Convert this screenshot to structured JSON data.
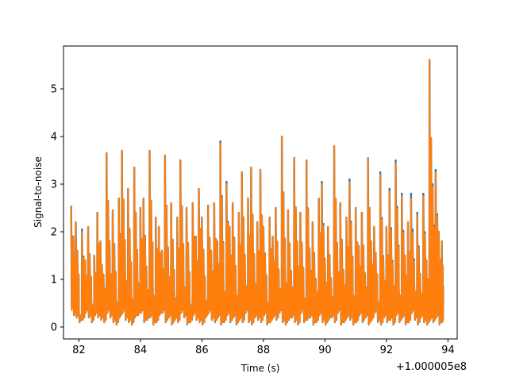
{
  "chart_data": {
    "type": "line",
    "xlabel": "Time (s)",
    "ylabel": "Signal-to-noise",
    "x_offset_label": "+1.000005e8",
    "xlim": [
      81.5,
      94.3
    ],
    "ylim": [
      -0.25,
      5.9
    ],
    "x_ticks": [
      82,
      84,
      86,
      88,
      90,
      92,
      94
    ],
    "x_tick_labels": [
      "82",
      "84",
      "86",
      "88",
      "90",
      "92",
      "94"
    ],
    "y_ticks": [
      0,
      1,
      2,
      3,
      4,
      5
    ],
    "y_tick_labels": [
      "0",
      "1",
      "2",
      "3",
      "4",
      "5"
    ],
    "grid": false,
    "series": [
      {
        "color": "#1f77b4",
        "x": [
          81.75,
          81.82,
          81.9,
          82.0,
          82.1,
          82.2,
          82.3,
          82.4,
          82.5,
          82.6,
          82.7,
          82.8,
          82.9,
          83.0,
          83.1,
          83.2,
          83.3,
          83.4,
          83.5,
          83.6,
          83.7,
          83.8,
          83.9,
          84.0,
          84.1,
          84.2,
          84.3,
          84.4,
          84.5,
          84.6,
          84.7,
          84.8,
          84.9,
          85.0,
          85.1,
          85.2,
          85.3,
          85.4,
          85.5,
          85.6,
          85.7,
          85.8,
          85.9,
          86.0,
          86.1,
          86.2,
          86.3,
          86.4,
          86.5,
          86.6,
          86.7,
          86.8,
          86.9,
          87.0,
          87.1,
          87.2,
          87.3,
          87.4,
          87.5,
          87.6,
          87.7,
          87.8,
          87.9,
          88.0,
          88.1,
          88.2,
          88.3,
          88.4,
          88.5,
          88.6,
          88.7,
          88.8,
          88.9,
          89.0,
          89.1,
          89.2,
          89.3,
          89.4,
          89.5,
          89.6,
          89.7,
          89.8,
          89.9,
          90.0,
          90.1,
          90.2,
          90.3,
          90.4,
          90.5,
          90.6,
          90.7,
          90.8,
          90.9,
          91.0,
          91.1,
          91.2,
          91.3,
          91.4,
          91.5,
          91.6,
          91.7,
          91.8,
          91.9,
          92.0,
          92.1,
          92.2,
          92.3,
          92.4,
          92.5,
          92.6,
          92.7,
          92.8,
          92.9,
          93.0,
          93.1,
          93.2,
          93.3,
          93.4,
          93.5,
          93.6,
          93.7,
          93.8
        ],
        "y": [
          2.55,
          1.9,
          2.2,
          0.3,
          2.05,
          1.4,
          2.1,
          0.6,
          1.5,
          2.4,
          1.8,
          1.1,
          3.65,
          1.5,
          2.45,
          0.7,
          2.7,
          3.7,
          1.3,
          2.9,
          0.8,
          3.35,
          1.2,
          2.5,
          2.7,
          1.05,
          3.7,
          0.9,
          2.3,
          2.1,
          1.6,
          3.6,
          1.4,
          2.6,
          0.8,
          2.3,
          3.5,
          1.1,
          2.5,
          0.6,
          2.6,
          1.9,
          2.9,
          2.3,
          0.7,
          2.55,
          1.6,
          2.6,
          1.8,
          3.9,
          1.0,
          3.05,
          2.1,
          2.6,
          0.9,
          2.4,
          3.25,
          1.1,
          2.7,
          3.35,
          1.2,
          2.2,
          3.3,
          2.1,
          0.7,
          2.3,
          1.9,
          2.5,
          1.0,
          4.0,
          1.3,
          2.45,
          1.1,
          3.55,
          1.8,
          2.4,
          0.8,
          3.5,
          1.6,
          2.2,
          1.0,
          2.7,
          3.05,
          1.3,
          2.1,
          0.8,
          3.8,
          1.5,
          2.6,
          1.2,
          2.3,
          3.1,
          0.9,
          2.5,
          1.7,
          2.4,
          1.1,
          3.55,
          1.8,
          2.1,
          0.7,
          3.25,
          1.3,
          2.1,
          2.9,
          1.2,
          3.5,
          0.9,
          2.8,
          1.5,
          2.2,
          2.8,
          1.0,
          2.4,
          0.9,
          2.8,
          1.4,
          5.6,
          3.0,
          3.3,
          2.0,
          1.8
        ],
        "y_low": [
          0.4,
          0.25,
          0.2,
          0.1,
          0.15,
          0.3,
          0.2,
          0.1,
          0.25,
          0.2,
          0.15,
          0.1,
          0.3,
          0.2,
          0.1,
          0.05,
          0.2,
          0.3,
          0.15,
          0.1,
          0.05,
          0.2,
          0.25,
          0.3,
          0.1,
          0.15,
          0.2,
          0.05,
          0.1,
          0.25,
          0.3,
          0.1,
          0.2,
          0.05,
          0.15,
          0.1,
          0.3,
          0.2,
          0.05,
          0.1,
          0.25,
          0.15,
          0.1,
          0.05,
          0.2,
          0.3,
          0.15,
          0.1,
          0.2,
          0.05,
          0.1,
          0.25,
          0.1,
          0.2,
          0.05,
          0.15,
          0.1,
          0.3,
          0.1,
          0.05,
          0.2,
          0.15,
          0.1,
          0.25,
          0.05,
          0.1,
          0.2,
          0.15,
          0.3,
          0.1,
          0.05,
          0.15,
          0.2,
          0.1,
          0.05,
          0.3,
          0.1,
          0.15,
          0.2,
          0.05,
          0.1,
          0.25,
          0.1,
          0.05,
          0.15,
          0.2,
          0.1,
          0.3,
          0.05,
          0.1,
          0.2,
          0.15,
          0.05,
          0.1,
          0.25,
          0.1,
          0.2,
          0.05,
          0.15,
          0.3,
          0.1,
          0.05,
          0.2,
          0.1,
          0.15,
          0.05,
          0.25,
          0.1,
          0.2,
          0.05,
          0.1,
          0.3,
          0.15,
          0.05,
          0.2,
          0.1,
          0.05,
          0.15,
          0.1,
          0.2,
          0.05,
          0.1
        ]
      },
      {
        "color": "#ff7f0e",
        "x": [
          81.75,
          81.82,
          81.9,
          82.0,
          82.1,
          82.2,
          82.3,
          82.4,
          82.5,
          82.6,
          82.7,
          82.8,
          82.9,
          83.0,
          83.1,
          83.2,
          83.3,
          83.4,
          83.5,
          83.6,
          83.7,
          83.8,
          83.9,
          84.0,
          84.1,
          84.2,
          84.3,
          84.4,
          84.5,
          84.6,
          84.7,
          84.8,
          84.9,
          85.0,
          85.1,
          85.2,
          85.3,
          85.4,
          85.5,
          85.6,
          85.7,
          85.8,
          85.9,
          86.0,
          86.1,
          86.2,
          86.3,
          86.4,
          86.5,
          86.6,
          86.7,
          86.8,
          86.9,
          87.0,
          87.1,
          87.2,
          87.3,
          87.4,
          87.5,
          87.6,
          87.7,
          87.8,
          87.9,
          88.0,
          88.1,
          88.2,
          88.3,
          88.4,
          88.5,
          88.6,
          88.7,
          88.8,
          88.9,
          89.0,
          89.1,
          89.2,
          89.3,
          89.4,
          89.5,
          89.6,
          89.7,
          89.8,
          89.9,
          90.0,
          90.1,
          90.2,
          90.3,
          90.4,
          90.5,
          90.6,
          90.7,
          90.8,
          90.9,
          91.0,
          91.1,
          91.2,
          91.3,
          91.4,
          91.5,
          91.6,
          91.7,
          91.8,
          91.9,
          92.0,
          92.1,
          92.2,
          92.3,
          92.4,
          92.5,
          92.6,
          92.7,
          92.8,
          92.9,
          93.0,
          93.1,
          93.2,
          93.3,
          93.4,
          93.5,
          93.6,
          93.7,
          93.8
        ],
        "y": [
          2.55,
          1.9,
          2.2,
          0.3,
          2.0,
          1.4,
          2.1,
          0.6,
          1.5,
          2.4,
          1.8,
          1.1,
          3.65,
          1.5,
          2.45,
          0.7,
          2.7,
          3.7,
          1.3,
          2.9,
          0.8,
          3.35,
          1.2,
          2.5,
          2.7,
          1.05,
          3.7,
          0.9,
          2.3,
          2.1,
          1.6,
          3.6,
          1.4,
          2.6,
          0.8,
          2.3,
          3.5,
          1.1,
          2.5,
          0.6,
          2.6,
          1.9,
          2.9,
          2.3,
          0.7,
          2.55,
          1.6,
          2.6,
          1.8,
          3.85,
          1.0,
          3.0,
          2.1,
          2.6,
          0.9,
          2.4,
          3.25,
          1.1,
          2.7,
          3.35,
          1.2,
          2.2,
          3.3,
          2.1,
          0.7,
          2.3,
          1.9,
          2.5,
          1.0,
          4.0,
          1.3,
          2.45,
          1.1,
          3.55,
          1.8,
          2.4,
          0.8,
          3.5,
          1.6,
          2.2,
          1.0,
          2.7,
          3.0,
          1.3,
          2.1,
          0.8,
          3.8,
          1.5,
          2.6,
          1.2,
          2.3,
          3.05,
          0.9,
          2.5,
          1.7,
          2.4,
          1.1,
          3.55,
          1.8,
          2.1,
          0.7,
          3.2,
          1.3,
          2.1,
          2.85,
          1.2,
          3.45,
          0.9,
          2.75,
          1.5,
          2.2,
          2.7,
          1.0,
          2.35,
          0.9,
          2.75,
          1.4,
          5.62,
          2.95,
          3.25,
          2.0,
          1.8
        ],
        "y_low": [
          0.35,
          0.25,
          0.2,
          0.1,
          0.15,
          0.3,
          0.2,
          0.1,
          0.25,
          0.2,
          0.15,
          0.1,
          0.3,
          0.2,
          0.1,
          0.05,
          0.2,
          0.3,
          0.15,
          0.1,
          0.05,
          0.2,
          0.25,
          0.3,
          0.1,
          0.15,
          0.2,
          0.05,
          0.1,
          0.25,
          0.3,
          0.1,
          0.2,
          0.05,
          0.15,
          0.1,
          0.3,
          0.2,
          0.05,
          0.1,
          0.25,
          0.15,
          0.1,
          0.05,
          0.2,
          0.3,
          0.15,
          0.1,
          0.2,
          0.05,
          0.1,
          0.25,
          0.1,
          0.2,
          0.05,
          0.15,
          0.1,
          0.3,
          0.1,
          0.05,
          0.2,
          0.15,
          0.1,
          0.25,
          0.05,
          0.1,
          0.2,
          0.15,
          0.3,
          0.1,
          0.05,
          0.15,
          0.2,
          0.1,
          0.05,
          0.3,
          0.1,
          0.15,
          0.2,
          0.05,
          0.1,
          0.25,
          0.1,
          0.05,
          0.15,
          0.2,
          0.1,
          0.3,
          0.05,
          0.1,
          0.2,
          0.15,
          0.05,
          0.1,
          0.25,
          0.1,
          0.2,
          0.05,
          0.15,
          0.3,
          0.1,
          0.05,
          0.2,
          0.1,
          0.15,
          0.05,
          0.25,
          0.1,
          0.2,
          0.05,
          0.1,
          0.3,
          0.15,
          0.05,
          0.2,
          0.1,
          0.05,
          0.15,
          0.1,
          0.2,
          0.05,
          0.1
        ]
      }
    ]
  }
}
